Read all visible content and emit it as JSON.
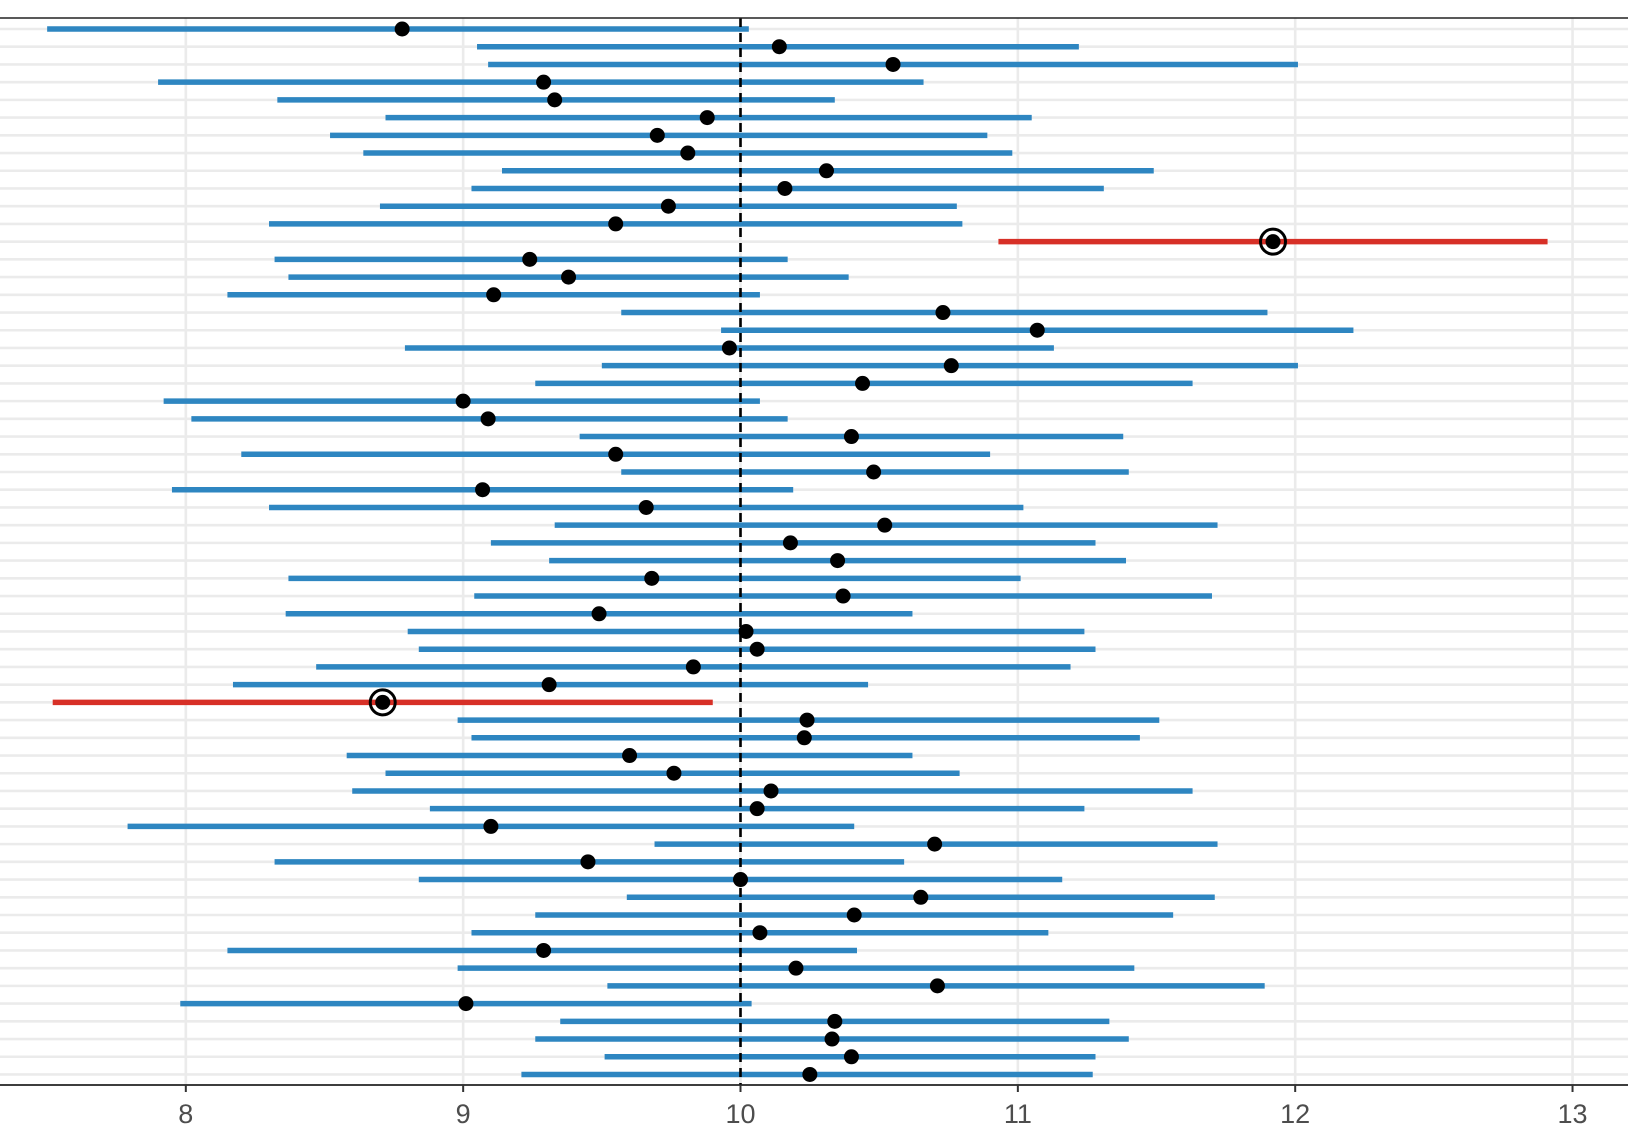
{
  "chart_data": {
    "type": "interval",
    "title": "",
    "xlabel": "",
    "ylabel": "",
    "xlim": [
      7.33,
      13.2
    ],
    "ticks": [
      8,
      9,
      10,
      11,
      12,
      13
    ],
    "reference_line": 10,
    "grid": true,
    "colors": {
      "covers": "#2e86c1",
      "misses": "#d73027",
      "point": "#000000",
      "reference": "#000000",
      "grid": "#ebebeb"
    },
    "intervals": [
      {
        "lower": 7.5,
        "estimate": 8.78,
        "upper": 10.03
      },
      {
        "lower": 9.05,
        "estimate": 10.14,
        "upper": 11.22
      },
      {
        "lower": 9.09,
        "estimate": 10.55,
        "upper": 12.01
      },
      {
        "lower": 7.9,
        "estimate": 9.29,
        "upper": 10.66
      },
      {
        "lower": 8.33,
        "estimate": 9.33,
        "upper": 10.34
      },
      {
        "lower": 8.72,
        "estimate": 9.88,
        "upper": 11.05
      },
      {
        "lower": 8.52,
        "estimate": 9.7,
        "upper": 10.89
      },
      {
        "lower": 8.64,
        "estimate": 9.81,
        "upper": 10.98
      },
      {
        "lower": 9.14,
        "estimate": 10.31,
        "upper": 11.49
      },
      {
        "lower": 9.03,
        "estimate": 10.16,
        "upper": 11.31
      },
      {
        "lower": 8.7,
        "estimate": 9.74,
        "upper": 10.78
      },
      {
        "lower": 8.3,
        "estimate": 9.55,
        "upper": 10.8
      },
      {
        "lower": 10.93,
        "estimate": 11.92,
        "upper": 12.91,
        "misses": true
      },
      {
        "lower": 8.32,
        "estimate": 9.24,
        "upper": 10.17
      },
      {
        "lower": 8.37,
        "estimate": 9.38,
        "upper": 10.39
      },
      {
        "lower": 8.15,
        "estimate": 9.11,
        "upper": 10.07
      },
      {
        "lower": 9.57,
        "estimate": 10.73,
        "upper": 11.9
      },
      {
        "lower": 9.93,
        "estimate": 11.07,
        "upper": 12.21
      },
      {
        "lower": 8.79,
        "estimate": 9.96,
        "upper": 11.13
      },
      {
        "lower": 9.5,
        "estimate": 10.76,
        "upper": 12.01
      },
      {
        "lower": 9.26,
        "estimate": 10.44,
        "upper": 11.63
      },
      {
        "lower": 7.92,
        "estimate": 9.0,
        "upper": 10.07
      },
      {
        "lower": 8.02,
        "estimate": 9.09,
        "upper": 10.17
      },
      {
        "lower": 9.42,
        "estimate": 10.4,
        "upper": 11.38
      },
      {
        "lower": 8.2,
        "estimate": 9.55,
        "upper": 10.9
      },
      {
        "lower": 9.57,
        "estimate": 10.48,
        "upper": 11.4
      },
      {
        "lower": 7.95,
        "estimate": 9.07,
        "upper": 10.19
      },
      {
        "lower": 8.3,
        "estimate": 9.66,
        "upper": 11.02
      },
      {
        "lower": 9.33,
        "estimate": 10.52,
        "upper": 11.72
      },
      {
        "lower": 9.1,
        "estimate": 10.18,
        "upper": 11.28
      },
      {
        "lower": 9.31,
        "estimate": 10.35,
        "upper": 11.39
      },
      {
        "lower": 8.37,
        "estimate": 9.68,
        "upper": 11.01
      },
      {
        "lower": 9.04,
        "estimate": 10.37,
        "upper": 11.7
      },
      {
        "lower": 8.36,
        "estimate": 9.49,
        "upper": 10.62
      },
      {
        "lower": 8.8,
        "estimate": 10.02,
        "upper": 11.24
      },
      {
        "lower": 8.84,
        "estimate": 10.06,
        "upper": 11.28
      },
      {
        "lower": 8.47,
        "estimate": 9.83,
        "upper": 11.19
      },
      {
        "lower": 8.17,
        "estimate": 9.31,
        "upper": 10.46
      },
      {
        "lower": 7.52,
        "estimate": 8.71,
        "upper": 9.9,
        "misses": true
      },
      {
        "lower": 8.98,
        "estimate": 10.24,
        "upper": 11.51
      },
      {
        "lower": 9.03,
        "estimate": 10.23,
        "upper": 11.44
      },
      {
        "lower": 8.58,
        "estimate": 9.6,
        "upper": 10.62
      },
      {
        "lower": 8.72,
        "estimate": 9.76,
        "upper": 10.79
      },
      {
        "lower": 8.6,
        "estimate": 10.11,
        "upper": 11.63
      },
      {
        "lower": 8.88,
        "estimate": 10.06,
        "upper": 11.24
      },
      {
        "lower": 7.79,
        "estimate": 9.1,
        "upper": 10.41
      },
      {
        "lower": 9.69,
        "estimate": 10.7,
        "upper": 11.72
      },
      {
        "lower": 8.32,
        "estimate": 9.45,
        "upper": 10.59
      },
      {
        "lower": 8.84,
        "estimate": 10.0,
        "upper": 11.16
      },
      {
        "lower": 9.59,
        "estimate": 10.65,
        "upper": 11.71
      },
      {
        "lower": 9.26,
        "estimate": 10.41,
        "upper": 11.56
      },
      {
        "lower": 9.03,
        "estimate": 10.07,
        "upper": 11.11
      },
      {
        "lower": 8.15,
        "estimate": 9.29,
        "upper": 10.42
      },
      {
        "lower": 8.98,
        "estimate": 10.2,
        "upper": 11.42
      },
      {
        "lower": 9.52,
        "estimate": 10.71,
        "upper": 11.89
      },
      {
        "lower": 7.98,
        "estimate": 9.01,
        "upper": 10.04
      },
      {
        "lower": 9.35,
        "estimate": 10.34,
        "upper": 11.33
      },
      {
        "lower": 9.26,
        "estimate": 10.33,
        "upper": 11.4
      },
      {
        "lower": 9.51,
        "estimate": 10.4,
        "upper": 11.28
      },
      {
        "lower": 9.21,
        "estimate": 10.25,
        "upper": 11.27
      }
    ]
  }
}
